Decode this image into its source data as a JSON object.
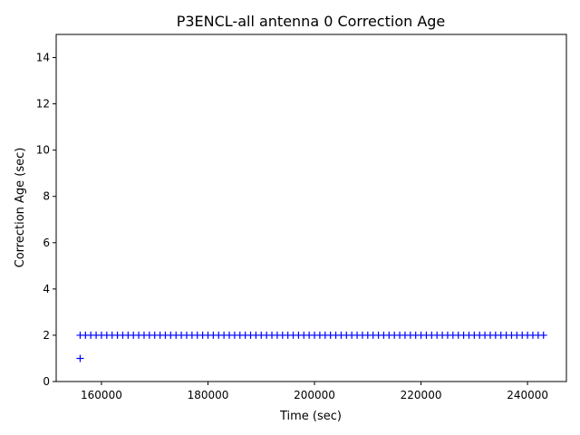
{
  "chart_data": {
    "type": "scatter",
    "title": "P3ENCL-all antenna 0 Correction Age",
    "x_label": "Time (sec)",
    "y_label": "Correction Age (sec)",
    "series": [
      {
        "color": "#0000ff",
        "x": [
          156000,
          157000,
          158000,
          159000,
          160000,
          161000,
          162000,
          163000,
          164000,
          165000,
          166000,
          167000,
          168000,
          169000,
          170000,
          171000,
          172000,
          173000,
          174000,
          175000,
          176000,
          177000,
          178000,
          179000,
          180000,
          181000,
          182000,
          183000,
          184000,
          185000,
          186000,
          187000,
          188000,
          189000,
          190000,
          191000,
          192000,
          193000,
          194000,
          195000,
          196000,
          197000,
          198000,
          199000,
          200000,
          201000,
          202000,
          203000,
          204000,
          205000,
          206000,
          207000,
          208000,
          209000,
          210000,
          211000,
          212000,
          213000,
          214000,
          215000,
          216000,
          217000,
          218000,
          219000,
          220000,
          221000,
          222000,
          223000,
          224000,
          225000,
          226000,
          227000,
          228000,
          229000,
          230000,
          231000,
          232000,
          233000,
          234000,
          235000,
          236000,
          237000,
          238000,
          239000,
          240000,
          241000,
          242000,
          243000,
          156000
        ],
        "values": [
          2,
          2,
          2,
          2,
          2,
          2,
          2,
          2,
          2,
          2,
          2,
          2,
          2,
          2,
          2,
          2,
          2,
          2,
          2,
          2,
          2,
          2,
          2,
          2,
          2,
          2,
          2,
          2,
          2,
          2,
          2,
          2,
          2,
          2,
          2,
          2,
          2,
          2,
          2,
          2,
          2,
          2,
          2,
          2,
          2,
          2,
          2,
          2,
          2,
          2,
          2,
          2,
          2,
          2,
          2,
          2,
          2,
          2,
          2,
          2,
          2,
          2,
          2,
          2,
          2,
          2,
          2,
          2,
          2,
          2,
          2,
          2,
          2,
          2,
          2,
          2,
          2,
          2,
          2,
          2,
          2,
          2,
          2,
          2,
          2,
          2,
          2,
          2,
          1
        ]
      }
    ],
    "xlim": [
      151500,
      247300
    ],
    "xticks": [
      160000,
      180000,
      200000,
      220000,
      240000
    ],
    "ylim": [
      0,
      15
    ],
    "yticks": [
      0,
      2,
      4,
      6,
      8,
      10,
      12,
      14
    ]
  }
}
